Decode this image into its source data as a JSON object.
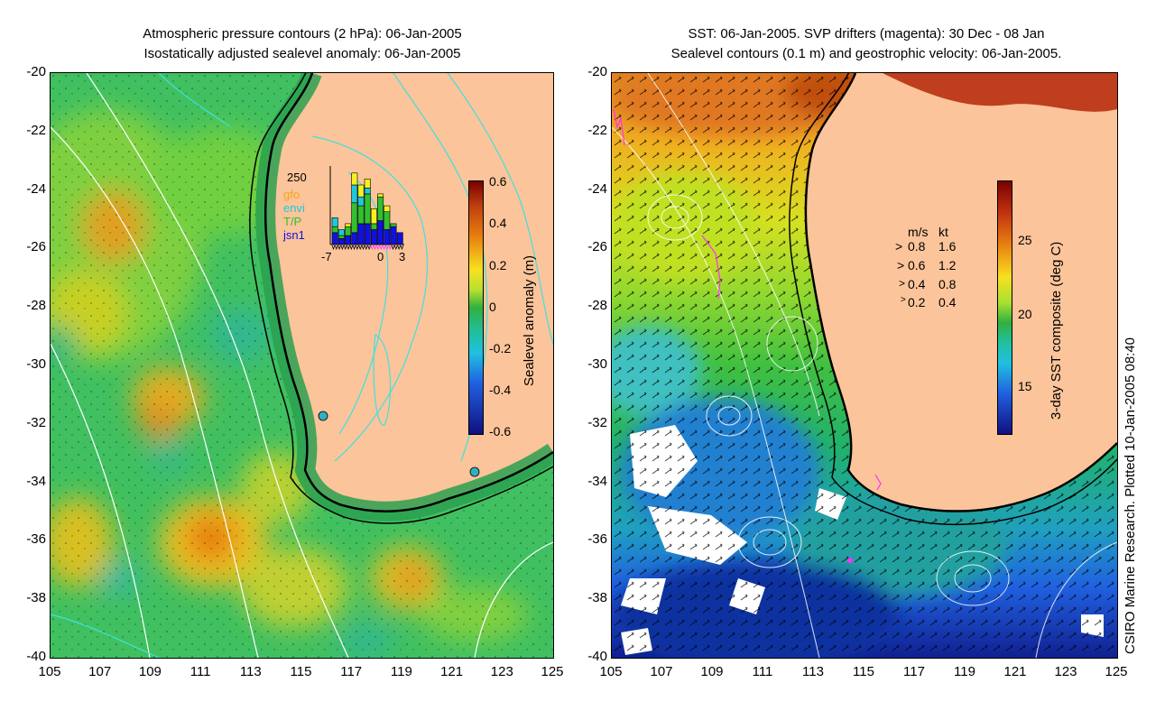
{
  "left_panel": {
    "title_line1": "Atmospheric pressure contours (2 hPa): 06-Jan-2005",
    "title_line2": "Isostatically adjusted sealevel anomaly: 06-Jan-2005",
    "colorbar_label": "Sealevel anomaly (m)",
    "colorbar_ticks": [
      "0.6",
      "0.4",
      "0.2",
      "0",
      "-0.2",
      "-0.4",
      "-0.6"
    ],
    "inset": {
      "ymax_label": "250",
      "legend": [
        "gfo",
        "envi",
        "T/P",
        "jsn1"
      ],
      "legend_colors": [
        "#f4a320",
        "#20c8d8",
        "#30c030",
        "#1010e0"
      ],
      "x_ticks": [
        "-7",
        "0",
        "3"
      ],
      "stacked_bars": [
        [
          0,
          30,
          20,
          40
        ],
        [
          0,
          20,
          10,
          20
        ],
        [
          10,
          0,
          30,
          30
        ],
        [
          40,
          60,
          100,
          40
        ],
        [
          40,
          30,
          60,
          70
        ],
        [
          30,
          20,
          100,
          70
        ],
        [
          50,
          0,
          20,
          50
        ],
        [
          10,
          0,
          80,
          80
        ],
        [
          20,
          0,
          60,
          50
        ],
        [
          0,
          0,
          10,
          60
        ],
        [
          0,
          0,
          0,
          40
        ]
      ]
    }
  },
  "right_panel": {
    "title_line1": "SST: 06-Jan-2005. SVP drifters (magenta): 30 Dec - 08 Jan",
    "title_line2": "Sealevel contours (0.1 m) and geostrophic velocity: 06-Jan-2005.",
    "colorbar_label": "3-day SST composite (deg C)",
    "colorbar_ticks": [
      "25",
      "20",
      "15"
    ],
    "velocity_legend": {
      "header_ms": "m/s",
      "header_kt": "kt",
      "rows": [
        {
          "ms": "0.8",
          "kt": "1.6"
        },
        {
          "ms": "0.6",
          "kt": "1.2"
        },
        {
          "ms": "0.4",
          "kt": "0.8"
        },
        {
          "ms": "0.2",
          "kt": "0.4"
        }
      ]
    }
  },
  "y_ticks": [
    "-20",
    "-22",
    "-24",
    "-26",
    "-28",
    "-30",
    "-32",
    "-34",
    "-36",
    "-38",
    "-40"
  ],
  "x_ticks": [
    "105",
    "107",
    "109",
    "111",
    "113",
    "115",
    "117",
    "119",
    "121",
    "123",
    "125"
  ],
  "credit": "CSIRO Marine Research. Plotted 10-Jan-2005 08:40",
  "colors": {
    "land": "#fcc49a",
    "coast": "#000000",
    "contour_left": "#40e0e0",
    "contour_white": "#ffffff",
    "drifter": "#ff30ff"
  }
}
